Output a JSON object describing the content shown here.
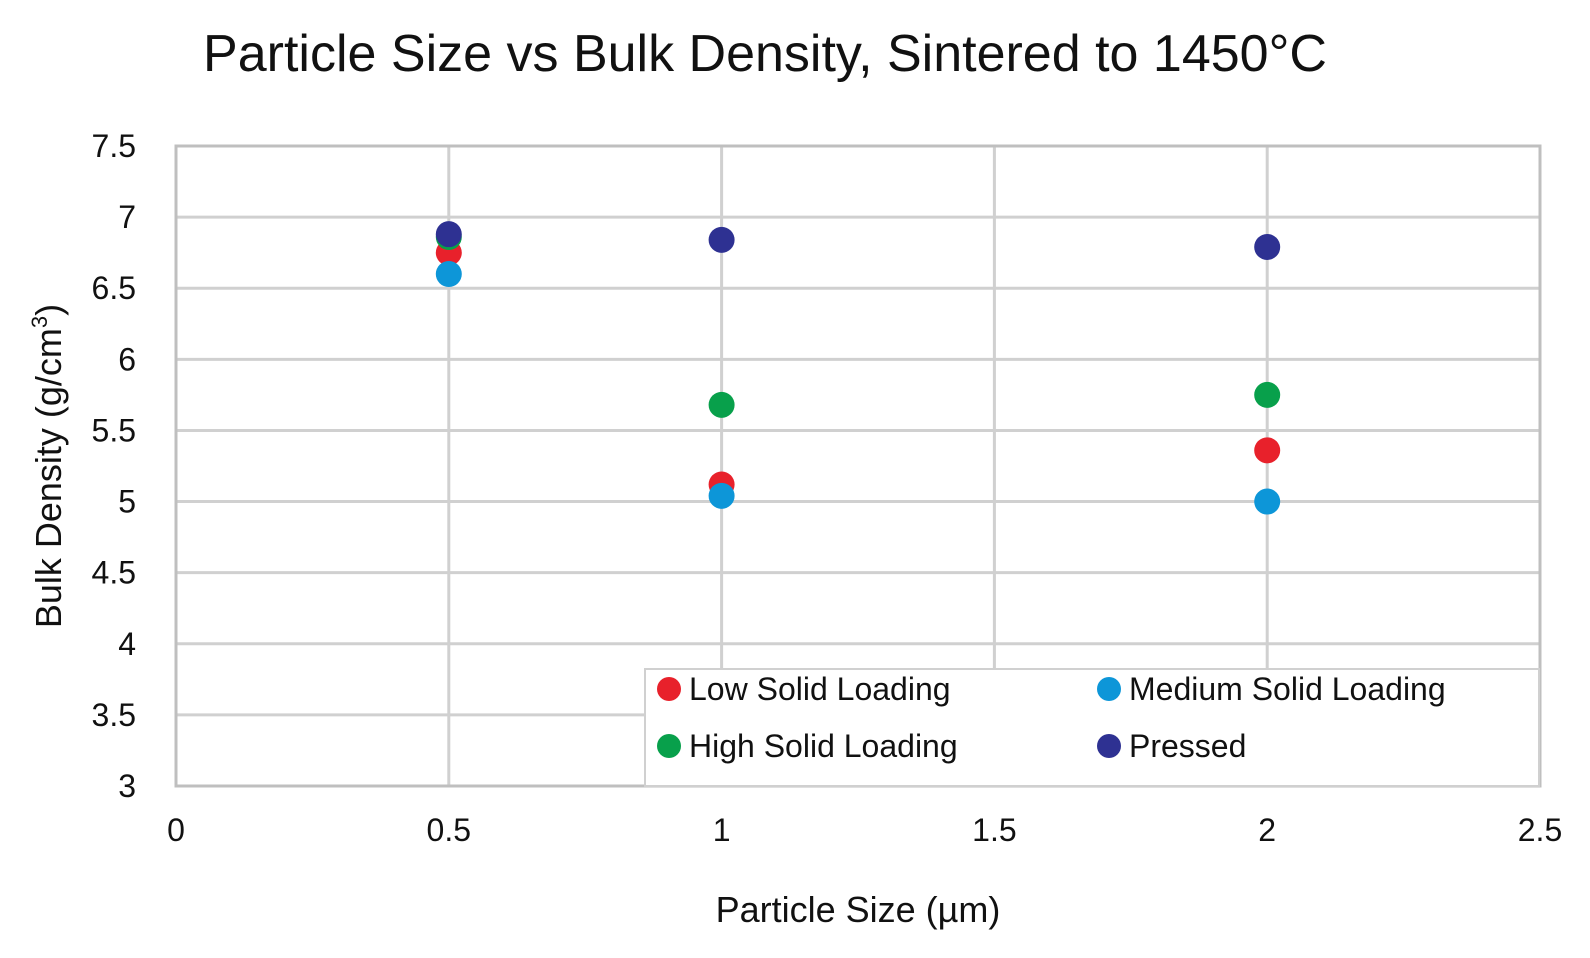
{
  "chart_data": {
    "type": "scatter",
    "title": "Particle Size vs Bulk Density, Sintered to 1450°C",
    "xlabel": "Particle Size (µm)",
    "ylabel_main": "Bulk Density (g/cm",
    "ylabel_sup": "3",
    "ylabel_close": ")",
    "xlim": [
      0,
      2.5
    ],
    "ylim": [
      3,
      7.5
    ],
    "xticks": [
      0,
      0.5,
      1,
      1.5,
      2,
      2.5
    ],
    "yticks": [
      3,
      3.5,
      4,
      4.5,
      5,
      5.5,
      6,
      6.5,
      7,
      7.5
    ],
    "grid": true,
    "legend_position": "bottom-right",
    "series": [
      {
        "name": "Low Solid Loading",
        "color": "#e8212b",
        "points": [
          [
            0.5,
            6.75
          ],
          [
            1,
            5.12
          ],
          [
            2,
            5.36
          ]
        ]
      },
      {
        "name": "Medium Solid Loading",
        "color": "#0d96d8",
        "points": [
          [
            0.5,
            6.6
          ],
          [
            1,
            5.04
          ],
          [
            2,
            5.0
          ]
        ]
      },
      {
        "name": "High Solid Loading",
        "color": "#08a04b",
        "points": [
          [
            0.5,
            6.86
          ],
          [
            1,
            5.68
          ],
          [
            2,
            5.75
          ]
        ]
      },
      {
        "name": "Pressed",
        "color": "#2e3192",
        "points": [
          [
            0.5,
            6.88
          ],
          [
            1,
            6.84
          ],
          [
            2,
            6.79
          ]
        ]
      }
    ]
  }
}
